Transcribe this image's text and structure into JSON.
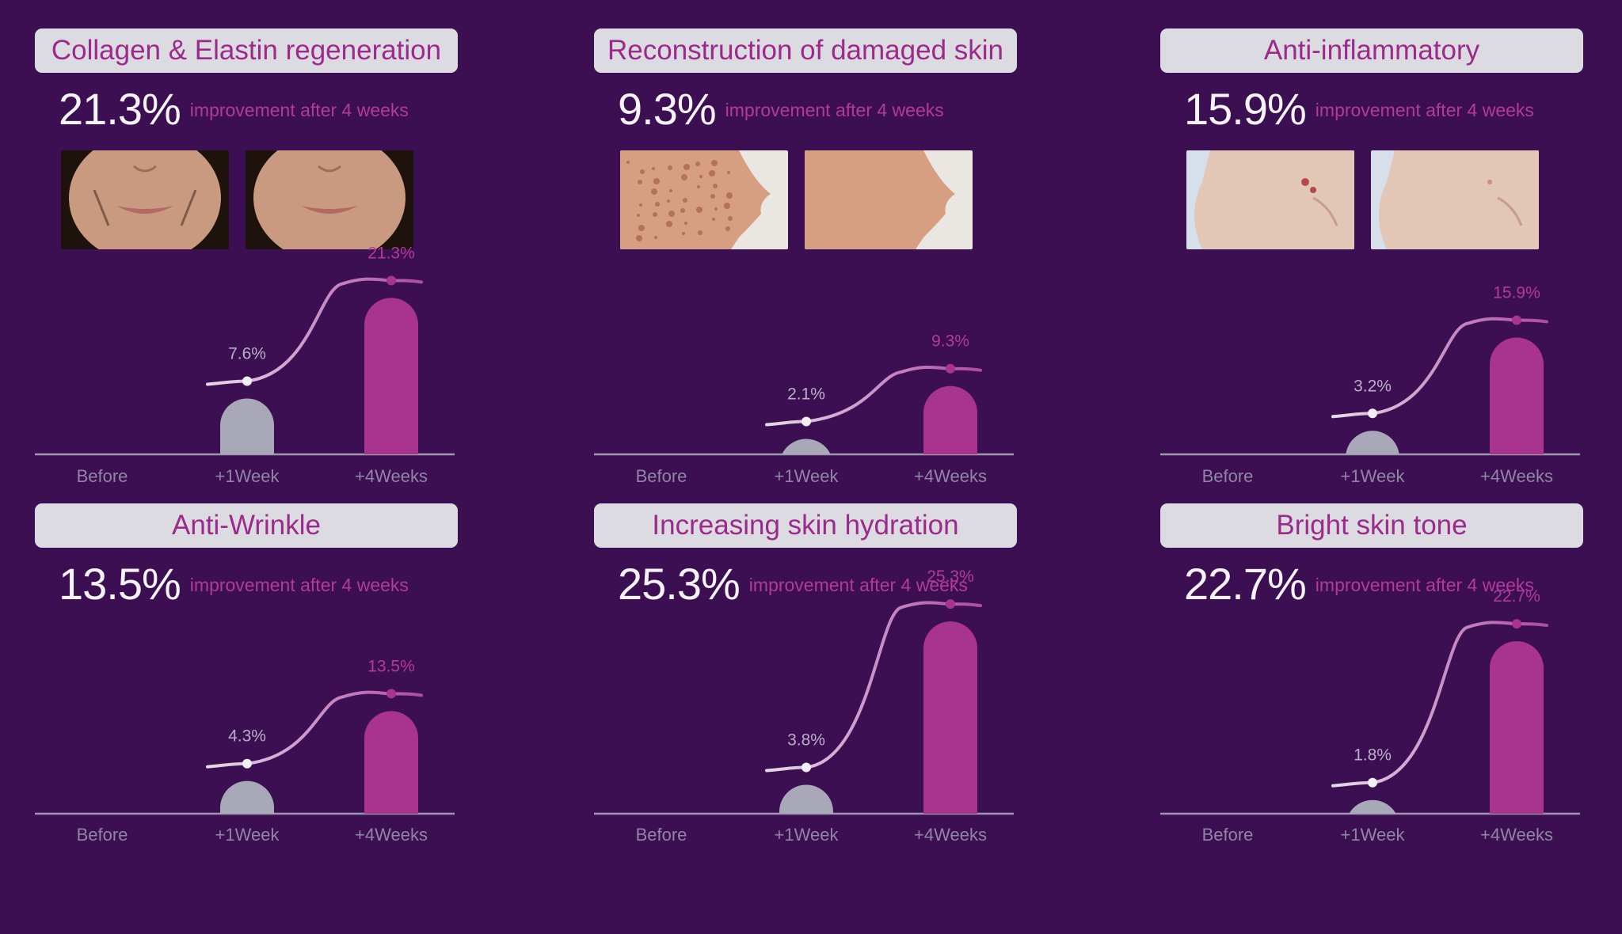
{
  "colors": {
    "background": "#3c0f52",
    "pill": "#dcdbe2",
    "accent": "#a8348f",
    "accent_text": "#b23a9d",
    "grey_bar": "#a9a8b8",
    "axis": "#9d97ad",
    "tick_text": "#8f86a4",
    "curve": "#c49ad3",
    "white_text": "#f5f3f8"
  },
  "panels": [
    {
      "title": "Collagen & Elastin regeneration",
      "stat_value": "21.3%",
      "stat_caption": "improvement after 4 weeks",
      "photos": {
        "before": "before-photo-lips",
        "after": "after-photo-lips",
        "skin": "#c99a80",
        "hair": "#1e120d"
      }
    },
    {
      "title": "Reconstruction of damaged skin",
      "stat_value": "9.3%",
      "stat_caption": "improvement after 4 weeks",
      "photos": {
        "before": "before-photo-cheek",
        "after": "after-photo-cheek",
        "skin": "#d69f81",
        "hair": "#eae6e2"
      }
    },
    {
      "title": "Anti-inflammatory",
      "stat_value": "15.9%",
      "stat_caption": "improvement after 4 weeks",
      "photos": {
        "before": "before-photo-jaw",
        "after": "after-photo-jaw",
        "skin": "#e2c6b6",
        "hair": "#d7e0ea"
      }
    },
    {
      "title": "Anti-Wrinkle",
      "stat_value": "13.5%",
      "stat_caption": "improvement after 4 weeks"
    },
    {
      "title": "Increasing skin hydration",
      "stat_value": "25.3%",
      "stat_caption": "improvement after 4 weeks"
    },
    {
      "title": "Bright skin tone",
      "stat_value": "22.7%",
      "stat_caption": "improvement after 4 weeks"
    }
  ],
  "chart_data": [
    {
      "type": "bar",
      "title": "Collagen & Elastin regeneration",
      "categories": [
        "Before",
        "+1Week",
        "+4Weeks"
      ],
      "values": [
        0,
        7.6,
        21.3
      ],
      "data_labels": [
        "",
        "7.6%",
        "21.3%"
      ],
      "ylim": [
        0,
        25
      ],
      "grid": false
    },
    {
      "type": "bar",
      "title": "Reconstruction of damaged skin",
      "categories": [
        "Before",
        "+1Week",
        "+4Weeks"
      ],
      "values": [
        0,
        2.1,
        9.3
      ],
      "data_labels": [
        "",
        "2.1%",
        "9.3%"
      ],
      "ylim": [
        0,
        25
      ],
      "grid": false
    },
    {
      "type": "bar",
      "title": "Anti-inflammatory",
      "categories": [
        "Before",
        "+1Week",
        "+4Weeks"
      ],
      "values": [
        0,
        3.2,
        15.9
      ],
      "data_labels": [
        "",
        "3.2%",
        "15.9%"
      ],
      "ylim": [
        0,
        25
      ],
      "grid": false
    },
    {
      "type": "bar",
      "title": "Anti-Wrinkle",
      "categories": [
        "Before",
        "+1Week",
        "+4Weeks"
      ],
      "values": [
        0,
        4.3,
        13.5
      ],
      "data_labels": [
        "",
        "4.3%",
        "13.5%"
      ],
      "ylim": [
        0,
        25
      ],
      "grid": false
    },
    {
      "type": "bar",
      "title": "Increasing skin hydration",
      "categories": [
        "Before",
        "+1Week",
        "+4Weeks"
      ],
      "values": [
        0,
        3.8,
        25.3
      ],
      "data_labels": [
        "",
        "3.8%",
        "25.3%"
      ],
      "ylim": [
        0,
        25
      ],
      "grid": false
    },
    {
      "type": "bar",
      "title": "Bright skin tone",
      "categories": [
        "Before",
        "+1Week",
        "+4Weeks"
      ],
      "values": [
        0,
        1.8,
        22.7
      ],
      "data_labels": [
        "",
        "1.8%",
        "22.7%"
      ],
      "ylim": [
        0,
        25
      ],
      "grid": false
    }
  ]
}
